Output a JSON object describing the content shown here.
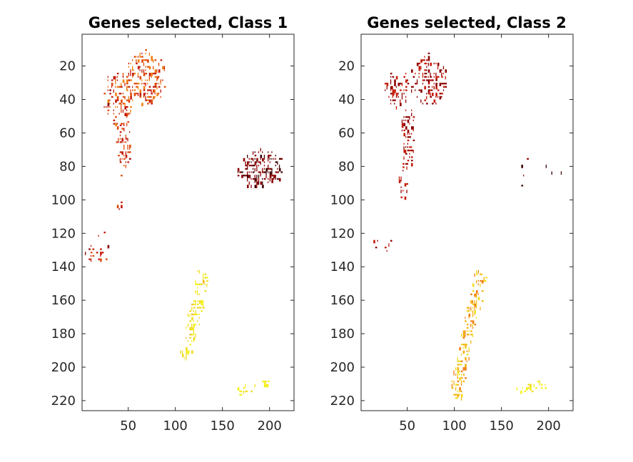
{
  "chart_data": [
    {
      "type": "heatmap",
      "title": "Genes selected, Class 1",
      "xlim": [
        1,
        226
      ],
      "ylim": [
        1,
        226
      ],
      "y_reversed": true,
      "xticks": [
        50,
        100,
        150,
        200
      ],
      "yticks": [
        20,
        40,
        60,
        80,
        100,
        120,
        140,
        160,
        180,
        200,
        220
      ],
      "colormap": [
        "#3d0000",
        "#8b0000",
        "#c41a0a",
        "#e0480a",
        "#f07e10",
        "#f5b416",
        "#f0dc1e",
        "#f5f01e"
      ],
      "regions": [
        {
          "id": "upper-blob",
          "shape": "ellipse",
          "cx": 68,
          "cy": 27,
          "rx": 22,
          "ry": 17,
          "density": 0.6,
          "intensity": [
            0.25,
            0.62
          ],
          "seed": 11
        },
        {
          "id": "upper-left-blob",
          "shape": "ellipse",
          "cx": 38,
          "cy": 40,
          "rx": 16,
          "ry": 18,
          "density": 0.5,
          "intensity": [
            0.2,
            0.55
          ],
          "seed": 12
        },
        {
          "id": "stem",
          "shape": "ellipse",
          "cx": 45,
          "cy": 65,
          "rx": 8,
          "ry": 18,
          "density": 0.45,
          "intensity": [
            0.2,
            0.5
          ],
          "seed": 13
        },
        {
          "id": "stem-lower",
          "shape": "ellipse",
          "cx": 40,
          "cy": 95,
          "rx": 6,
          "ry": 12,
          "density": 0.15,
          "intensity": [
            0.2,
            0.4
          ],
          "seed": 14
        },
        {
          "id": "dark-cluster",
          "shape": "ellipse",
          "cx": 190,
          "cy": 81,
          "rx": 26,
          "ry": 12,
          "density": 0.65,
          "intensity": [
            0.0,
            0.2
          ],
          "seed": 15
        },
        {
          "id": "left-cluster",
          "shape": "ellipse",
          "cx": 18,
          "cy": 131,
          "rx": 14,
          "ry": 6,
          "density": 0.45,
          "intensity": [
            0.2,
            0.4
          ],
          "seed": 16
        },
        {
          "id": "left-scatter",
          "shape": "ellipse",
          "cx": 18,
          "cy": 117,
          "rx": 10,
          "ry": 8,
          "density": 0.05,
          "intensity": [
            0.2,
            0.4
          ],
          "seed": 17
        },
        {
          "id": "yellow-band",
          "shape": "band",
          "x1": 130,
          "y1": 143,
          "x2": 110,
          "y2": 195,
          "w": 7,
          "density": 0.6,
          "intensity": [
            0.78,
            1.0
          ],
          "seed": 18
        },
        {
          "id": "yellow-streak",
          "shape": "band",
          "x1": 165,
          "y1": 214,
          "x2": 200,
          "y2": 209,
          "w": 3,
          "density": 0.5,
          "intensity": [
            0.9,
            1.0
          ],
          "seed": 19
        }
      ]
    },
    {
      "type": "heatmap",
      "title": "Genes selected, Class 2",
      "xlim": [
        1,
        226
      ],
      "ylim": [
        1,
        226
      ],
      "y_reversed": true,
      "xticks": [
        50,
        100,
        150,
        200
      ],
      "yticks": [
        20,
        40,
        60,
        80,
        100,
        120,
        140,
        160,
        180,
        200,
        220
      ],
      "colormap": [
        "#3d0000",
        "#8b0000",
        "#c41a0a",
        "#e0480a",
        "#f07e10",
        "#f5b416",
        "#f0dc1e",
        "#f5f01e"
      ],
      "regions": [
        {
          "id": "upper-blob",
          "shape": "ellipse",
          "cx": 72,
          "cy": 28,
          "rx": 20,
          "ry": 16,
          "density": 0.6,
          "intensity": [
            0.1,
            0.32
          ],
          "seed": 21
        },
        {
          "id": "upper-left-blob",
          "shape": "ellipse",
          "cx": 38,
          "cy": 32,
          "rx": 14,
          "ry": 12,
          "density": 0.55,
          "intensity": [
            0.1,
            0.32
          ],
          "seed": 22
        },
        {
          "id": "stem",
          "shape": "ellipse",
          "cx": 50,
          "cy": 62,
          "rx": 8,
          "ry": 20,
          "density": 0.5,
          "intensity": [
            0.1,
            0.3
          ],
          "seed": 23
        },
        {
          "id": "stem-lower",
          "shape": "ellipse",
          "cx": 45,
          "cy": 88,
          "rx": 6,
          "ry": 12,
          "density": 0.35,
          "intensity": [
            0.1,
            0.3
          ],
          "seed": 24
        },
        {
          "id": "dark-scatter",
          "shape": "ellipse",
          "cx": 185,
          "cy": 83,
          "rx": 30,
          "ry": 12,
          "density": 0.03,
          "intensity": [
            0.0,
            0.12
          ],
          "seed": 25
        },
        {
          "id": "left-scatter",
          "shape": "ellipse",
          "cx": 20,
          "cy": 128,
          "rx": 14,
          "ry": 10,
          "density": 0.06,
          "intensity": [
            0.15,
            0.35
          ],
          "seed": 26
        },
        {
          "id": "orange-band",
          "shape": "band",
          "x1": 128,
          "y1": 143,
          "x2": 100,
          "y2": 218,
          "w": 7,
          "density": 0.65,
          "intensity": [
            0.55,
            0.9
          ],
          "seed": 27
        },
        {
          "id": "yellow-streak",
          "shape": "band",
          "x1": 165,
          "y1": 214,
          "x2": 200,
          "y2": 209,
          "w": 3,
          "density": 0.5,
          "intensity": [
            0.9,
            1.0
          ],
          "seed": 28
        }
      ]
    }
  ]
}
